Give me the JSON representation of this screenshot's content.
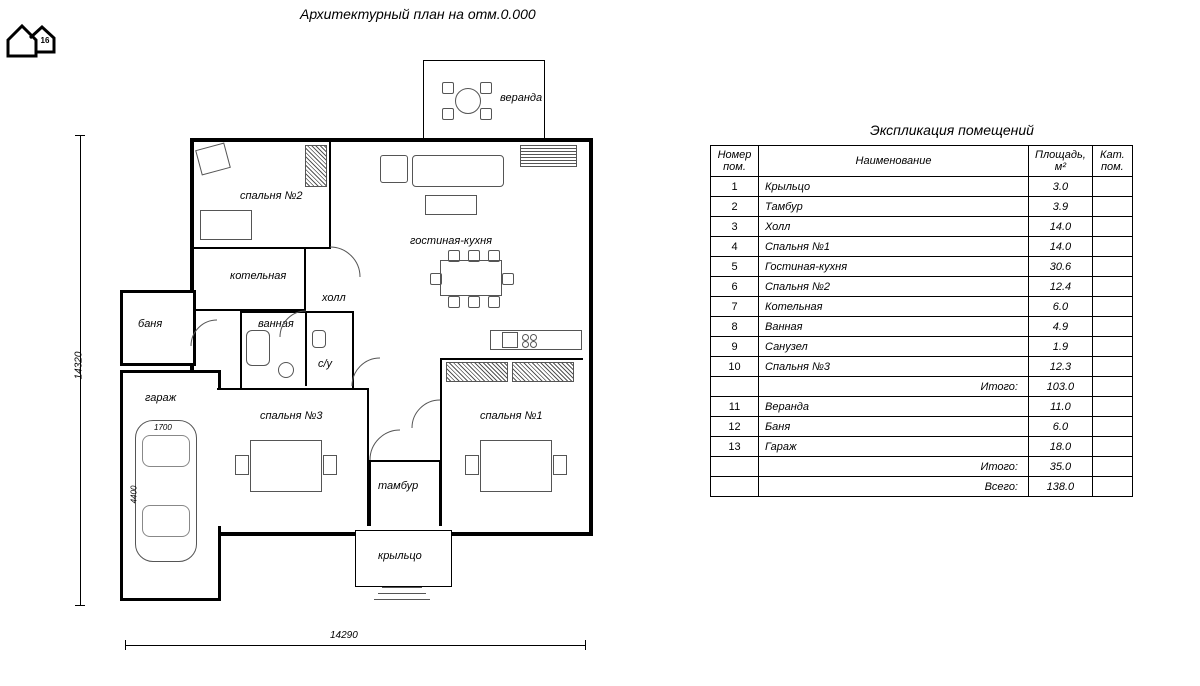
{
  "title": "Архитектурный план на отм.0.000",
  "logo_number": "16",
  "dimensions": {
    "width_label": "14290",
    "height_label": "14320"
  },
  "room_labels": {
    "veranda": "веранда",
    "bedroom2": "спальня №2",
    "living_kitchen": "гостиная-кухня",
    "boiler": "котельная",
    "hall": "холл",
    "sauna": "баня",
    "bath": "ванная",
    "wc": "с/у",
    "garage": "гараж",
    "bedroom3": "спальня №3",
    "bedroom1": "спальня №1",
    "vestibule": "тамбур",
    "porch": "крыльцо"
  },
  "car_dims": {
    "w": "1700",
    "l": "4400"
  },
  "table": {
    "title": "Экспликация помещений",
    "headers": {
      "num": "Номер пом.",
      "name": "Наименование",
      "area": "Площадь, м²",
      "cat": "Кат. пом."
    },
    "rows": [
      {
        "n": "1",
        "name": "Крыльцо",
        "area": "3.0"
      },
      {
        "n": "2",
        "name": "Тамбур",
        "area": "3.9"
      },
      {
        "n": "3",
        "name": "Холл",
        "area": "14.0"
      },
      {
        "n": "4",
        "name": "Спальня №1",
        "area": "14.0"
      },
      {
        "n": "5",
        "name": "Гостиная-кухня",
        "area": "30.6"
      },
      {
        "n": "6",
        "name": "Спальня №2",
        "area": "12.4"
      },
      {
        "n": "7",
        "name": "Котельная",
        "area": "6.0"
      },
      {
        "n": "8",
        "name": "Ванная",
        "area": "4.9"
      },
      {
        "n": "9",
        "name": "Санузел",
        "area": "1.9"
      },
      {
        "n": "10",
        "name": "Спальня №3",
        "area": "12.3"
      }
    ],
    "subtotal1": {
      "label": "Итого:",
      "area": "103.0"
    },
    "rows2": [
      {
        "n": "11",
        "name": "Веранда",
        "area": "11.0"
      },
      {
        "n": "12",
        "name": "Баня",
        "area": "6.0"
      },
      {
        "n": "13",
        "name": "Гараж",
        "area": "18.0"
      }
    ],
    "subtotal2": {
      "label": "Итого:",
      "area": "35.0"
    },
    "total": {
      "label": "Всего:",
      "area": "138.0"
    }
  },
  "style": {
    "bg": "#ffffff",
    "line": "#000000",
    "furn_line": "#555555",
    "font_italic": true,
    "title_fontsize": 14,
    "label_fontsize": 11,
    "table_fontsize": 11
  }
}
